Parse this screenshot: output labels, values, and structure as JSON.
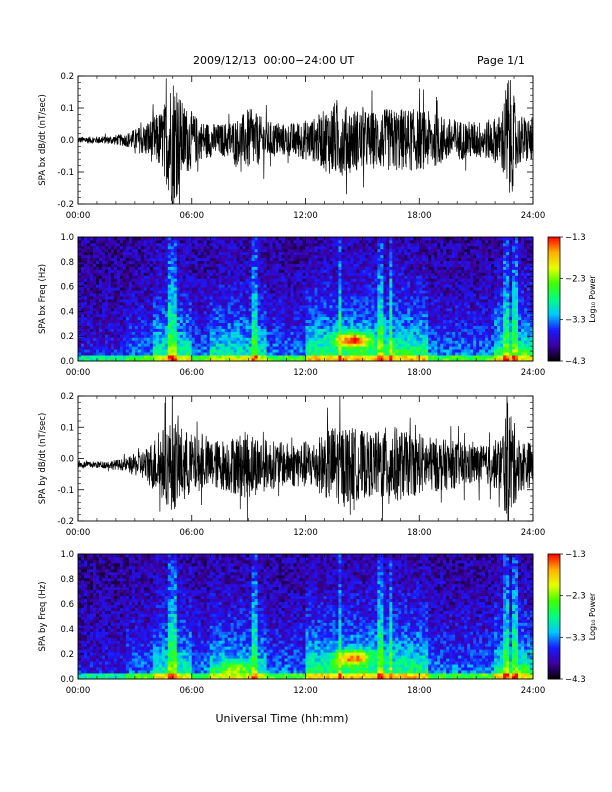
{
  "header": {
    "title": "2009/12/13  00:00−24:00 UT",
    "page": "Page 1/1"
  },
  "xaxis_label": "Universal Time (hh:mm)",
  "x_tick_labels": [
    "00:00",
    "06:00",
    "12:00",
    "18:00",
    "24:00"
  ],
  "colorbar": {
    "label": "Log₁₀ Power",
    "tick_labels": [
      "−1.3",
      "−2.3",
      "−3.3",
      "−4.3"
    ],
    "range": [
      -4.3,
      -1.3
    ],
    "colormap": [
      "#000000",
      "#3c00a0",
      "#1a1aff",
      "#00c8ff",
      "#00ff80",
      "#40ff00",
      "#e6ff00",
      "#ffb000",
      "#ff0000"
    ]
  },
  "chart_data": [
    {
      "type": "line",
      "ylabel": "SPA bx dB/dt (nT/sec)",
      "x_unit": "hours UT",
      "xlim": [
        0,
        24
      ],
      "ylim": [
        -0.2,
        0.2
      ],
      "y_tick_labels": [
        "0.2",
        "0.1",
        "0.0",
        "-0.1",
        "-0.2"
      ],
      "grid": false,
      "offset": 0.0,
      "amplitude_envelope": [
        [
          0,
          0.01
        ],
        [
          1.5,
          0.012
        ],
        [
          2.5,
          0.02
        ],
        [
          3.5,
          0.05
        ],
        [
          4.5,
          0.1
        ],
        [
          5.0,
          0.22
        ],
        [
          5.5,
          0.12
        ],
        [
          6.5,
          0.06
        ],
        [
          7.5,
          0.05
        ],
        [
          8.5,
          0.07
        ],
        [
          9.0,
          0.1
        ],
        [
          10,
          0.06
        ],
        [
          11,
          0.05
        ],
        [
          12.5,
          0.07
        ],
        [
          13.5,
          0.12
        ],
        [
          14.5,
          0.1
        ],
        [
          15.5,
          0.09
        ],
        [
          16.5,
          0.1
        ],
        [
          17.5,
          0.1
        ],
        [
          18.5,
          0.09
        ],
        [
          19.5,
          0.07
        ],
        [
          20.5,
          0.06
        ],
        [
          21.5,
          0.06
        ],
        [
          22.3,
          0.08
        ],
        [
          22.7,
          0.22
        ],
        [
          23.2,
          0.08
        ],
        [
          24,
          0.07
        ]
      ]
    },
    {
      "type": "heatmap",
      "ylabel": "SPA bx Freq (Hz)",
      "x_unit": "hours UT",
      "xlim": [
        0,
        24
      ],
      "ylim": [
        0.0,
        1.0
      ],
      "y_tick_labels": [
        "1.0",
        "0.8",
        "0.6",
        "0.4",
        "0.2",
        "0.0"
      ],
      "value_unit": "log10 power",
      "value_range": [
        -4.3,
        -1.3
      ],
      "hot_spots": [
        {
          "x": 14.5,
          "y": 0.17,
          "value": -1.3
        },
        {
          "x": 16.8,
          "y": 0.05,
          "value": -2.5
        },
        {
          "x": 23.2,
          "y": 0.05,
          "value": -2.4
        }
      ],
      "bright_columns": [
        4.8,
        5.1,
        9.3,
        13.8,
        16.0,
        16.5,
        22.6,
        23.0
      ]
    },
    {
      "type": "line",
      "ylabel": "SPA by dB/dt (nT/sec)",
      "x_unit": "hours UT",
      "xlim": [
        0,
        24
      ],
      "ylim": [
        -0.2,
        0.2
      ],
      "y_tick_labels": [
        "0.2",
        "0.1",
        "0.0",
        "-0.1",
        "-0.2"
      ],
      "grid": false,
      "offset": -0.02,
      "amplitude_envelope": [
        [
          0,
          0.01
        ],
        [
          1.5,
          0.012
        ],
        [
          2.5,
          0.02
        ],
        [
          3.5,
          0.05
        ],
        [
          4.5,
          0.12
        ],
        [
          5.0,
          0.15
        ],
        [
          5.5,
          0.12
        ],
        [
          6.5,
          0.08
        ],
        [
          7.5,
          0.08
        ],
        [
          8.5,
          0.1
        ],
        [
          9.0,
          0.11
        ],
        [
          10,
          0.08
        ],
        [
          11,
          0.07
        ],
        [
          12.5,
          0.08
        ],
        [
          13.5,
          0.13
        ],
        [
          14.5,
          0.12
        ],
        [
          15.5,
          0.1
        ],
        [
          16.5,
          0.13
        ],
        [
          17.5,
          0.1
        ],
        [
          18.5,
          0.09
        ],
        [
          19.5,
          0.08
        ],
        [
          20.5,
          0.07
        ],
        [
          21.5,
          0.06
        ],
        [
          22.3,
          0.09
        ],
        [
          22.7,
          0.22
        ],
        [
          23.2,
          0.09
        ],
        [
          24,
          0.07
        ]
      ]
    },
    {
      "type": "heatmap",
      "ylabel": "SPA by Freq (Hz)",
      "x_unit": "hours UT",
      "xlim": [
        0,
        24
      ],
      "ylim": [
        0.0,
        1.0
      ],
      "y_tick_labels": [
        "1.0",
        "0.8",
        "0.6",
        "0.4",
        "0.2",
        "0.0"
      ],
      "value_unit": "log10 power",
      "value_range": [
        -4.3,
        -1.3
      ],
      "hot_spots": [
        {
          "x": 14.5,
          "y": 0.17,
          "value": -1.5
        },
        {
          "x": 8.3,
          "y": 0.08,
          "value": -2.2
        },
        {
          "x": 23.2,
          "y": 0.05,
          "value": -2.4
        }
      ],
      "bright_columns": [
        4.8,
        5.1,
        9.3,
        13.8,
        16.0,
        16.5,
        22.6,
        23.0
      ]
    }
  ]
}
